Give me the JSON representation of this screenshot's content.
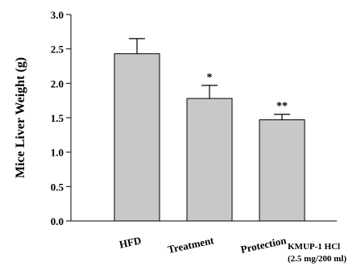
{
  "chart_data": {
    "type": "bar",
    "categories": [
      "HFD",
      "Treatment",
      "Protection"
    ],
    "values": [
      2.43,
      1.78,
      1.47
    ],
    "errors": [
      0.22,
      0.19,
      0.08
    ],
    "significance": [
      "",
      "*",
      "**"
    ],
    "title": "",
    "xlabel": "",
    "ylabel": "Mice Liver Weight (g)",
    "ylim": [
      0,
      3.0
    ],
    "yticks": [
      0.0,
      0.5,
      1.0,
      1.5,
      2.0,
      2.5,
      3.0
    ],
    "ytick_labels": [
      "0.0",
      "0.5",
      "1.0",
      "1.5",
      "2.0",
      "2.5",
      "3.0"
    ],
    "grid": false,
    "bar_color": "#c8c8c8",
    "annotation": {
      "line1": "KMUP-1 HCl",
      "line2": "(2.5 mg/200 ml)"
    }
  }
}
